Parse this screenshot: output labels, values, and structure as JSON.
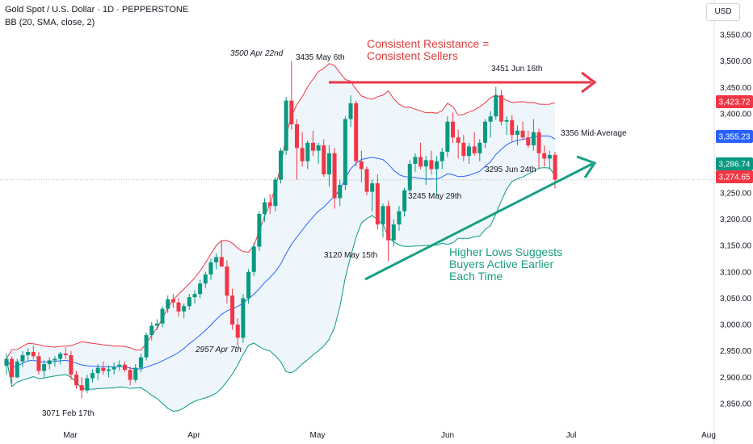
{
  "header": {
    "line1": "Gold Spot / U.S. Dollar · 1D · PEPPERSTONE",
    "line2": "BB (20, SMA, close, 2)"
  },
  "currency": "USD",
  "annotations": {
    "resistance": "Consistent Resistance =\nConsistent Sellers",
    "higher_lows": "Higher Lows Suggests\nBuyers Active Earlier\nEach Time",
    "mid_average": "3356 Mid-Average",
    "labels": [
      {
        "text": "3500 Apr 22nd",
        "price": 3500
      },
      {
        "text": "3435 May 6th",
        "price": 3435
      },
      {
        "text": "3451 Jun 16th",
        "price": 3451
      },
      {
        "text": "3295 Jun 24th",
        "price": 3295
      },
      {
        "text": "3245 May 29th",
        "price": 3245
      },
      {
        "text": "3120 May 15th",
        "price": 3120
      },
      {
        "text": "2957 Apr 7th",
        "price": 2957
      },
      {
        "text": "3071 Feb 17th",
        "price": 3071
      }
    ]
  },
  "price_badges": [
    {
      "value": "3,423.72",
      "color": "#f23645"
    },
    {
      "value": "3,355.23",
      "color": "#2962ff"
    },
    {
      "value": "3,286.74",
      "color": "#089981"
    },
    {
      "value": "3,274.65",
      "color": "#f23645"
    }
  ],
  "colors": {
    "up": "#089981",
    "down": "#f23645",
    "band_upper": "#f23645",
    "band_basis": "#2962ff",
    "band_lower": "#089981",
    "band_fill": "#eef6fb",
    "arrow_red": "#e8394a",
    "arrow_green": "#16a085"
  },
  "chart_data": {
    "type": "candlestick",
    "symbol": "Gold Spot / U.S. Dollar",
    "interval": "1D",
    "indicator": "BB (20, SMA, close, 2)",
    "x_ticks": [
      "Mar",
      "Apr",
      "May",
      "Jun",
      "Jul",
      "Aug"
    ],
    "y_ticks": [
      2850,
      2900,
      2950,
      3000,
      3050,
      3100,
      3150,
      3200,
      3250,
      3300,
      3350,
      3400,
      3450,
      3500,
      3550
    ],
    "y_tick_labels": [
      "2,850.00",
      "2,900.00",
      "2,950.00",
      "3,000.00",
      "3,050.00",
      "3,100.00",
      "3,150.00",
      "3,200.00",
      "3,250.00",
      "",
      "",
      "3,400.00",
      "3,450.00",
      "3,500.00",
      "3,550.00"
    ],
    "ylim": [
      2820,
      3590
    ],
    "last_price": 3274.65,
    "bollinger": {
      "upper": 3423.72,
      "basis": 3355.23,
      "lower": 3286.74
    },
    "candles": [
      [
        2922,
        2945,
        2905,
        2935
      ],
      [
        2935,
        2940,
        2888,
        2900
      ],
      [
        2900,
        2935,
        2898,
        2930
      ],
      [
        2930,
        2950,
        2920,
        2942
      ],
      [
        2942,
        2955,
        2930,
        2948
      ],
      [
        2948,
        2960,
        2935,
        2940
      ],
      [
        2940,
        2948,
        2905,
        2912
      ],
      [
        2912,
        2932,
        2900,
        2925
      ],
      [
        2925,
        2938,
        2915,
        2932
      ],
      [
        2932,
        2940,
        2920,
        2935
      ],
      [
        2935,
        2948,
        2925,
        2945
      ],
      [
        2945,
        2957,
        2935,
        2942
      ],
      [
        2942,
        2950,
        2895,
        2905
      ],
      [
        2905,
        2912,
        2878,
        2885
      ],
      [
        2885,
        2900,
        2860,
        2875
      ],
      [
        2875,
        2905,
        2870,
        2898
      ],
      [
        2898,
        2915,
        2890,
        2908
      ],
      [
        2908,
        2925,
        2895,
        2918
      ],
      [
        2918,
        2930,
        2905,
        2912
      ],
      [
        2912,
        2922,
        2900,
        2915
      ],
      [
        2915,
        2928,
        2905,
        2920
      ],
      [
        2920,
        2932,
        2912,
        2924
      ],
      [
        2924,
        2930,
        2910,
        2914
      ],
      [
        2914,
        2920,
        2885,
        2895
      ],
      [
        2895,
        2925,
        2890,
        2918
      ],
      [
        2918,
        2945,
        2910,
        2938
      ],
      [
        2938,
        2985,
        2932,
        2980
      ],
      [
        2980,
        3005,
        2970,
        2998
      ],
      [
        2998,
        3010,
        2990,
        3002
      ],
      [
        3002,
        3035,
        2995,
        3030
      ],
      [
        3030,
        3055,
        3022,
        3048
      ],
      [
        3048,
        3058,
        3032,
        3042
      ],
      [
        3042,
        3050,
        3015,
        3025
      ],
      [
        3025,
        3040,
        3012,
        3035
      ],
      [
        3035,
        3058,
        3028,
        3052
      ],
      [
        3052,
        3065,
        3040,
        3058
      ],
      [
        3058,
        3085,
        3050,
        3078
      ],
      [
        3078,
        3100,
        3070,
        3095
      ],
      [
        3095,
        3125,
        3085,
        3118
      ],
      [
        3118,
        3135,
        3105,
        3128
      ],
      [
        3128,
        3160,
        3115,
        3110
      ],
      [
        3110,
        3122,
        3040,
        3055
      ],
      [
        3055,
        3068,
        2990,
        3000
      ],
      [
        3000,
        3012,
        2960,
        2975
      ],
      [
        2975,
        3058,
        2965,
        3050
      ],
      [
        3050,
        3105,
        3040,
        3100
      ],
      [
        3100,
        3155,
        3092,
        3148
      ],
      [
        3148,
        3215,
        3140,
        3210
      ],
      [
        3210,
        3240,
        3195,
        3232
      ],
      [
        3232,
        3248,
        3210,
        3225
      ],
      [
        3225,
        3280,
        3215,
        3275
      ],
      [
        3275,
        3335,
        3268,
        3330
      ],
      [
        3330,
        3432,
        3322,
        3425
      ],
      [
        3425,
        3500,
        3370,
        3380
      ],
      [
        3380,
        3390,
        3275,
        3335
      ],
      [
        3335,
        3365,
        3300,
        3310
      ],
      [
        3310,
        3350,
        3295,
        3345
      ],
      [
        3345,
        3368,
        3320,
        3330
      ],
      [
        3330,
        3345,
        3305,
        3340
      ],
      [
        3340,
        3352,
        3280,
        3285
      ],
      [
        3285,
        3340,
        3262,
        3325
      ],
      [
        3325,
        3335,
        3220,
        3240
      ],
      [
        3240,
        3275,
        3225,
        3265
      ],
      [
        3265,
        3395,
        3255,
        3390
      ],
      [
        3390,
        3435,
        3375,
        3420
      ],
      [
        3420,
        3425,
        3300,
        3310
      ],
      [
        3310,
        3330,
        3270,
        3295
      ],
      [
        3295,
        3300,
        3245,
        3252
      ],
      [
        3252,
        3275,
        3215,
        3268
      ],
      [
        3268,
        3285,
        3180,
        3190
      ],
      [
        3190,
        3230,
        3165,
        3225
      ],
      [
        3225,
        3235,
        3120,
        3160
      ],
      [
        3160,
        3200,
        3148,
        3190
      ],
      [
        3190,
        3225,
        3178,
        3215
      ],
      [
        3215,
        3260,
        3205,
        3255
      ],
      [
        3255,
        3312,
        3248,
        3305
      ],
      [
        3305,
        3325,
        3290,
        3318
      ],
      [
        3318,
        3345,
        3295,
        3300
      ],
      [
        3300,
        3320,
        3265,
        3312
      ],
      [
        3312,
        3330,
        3285,
        3295
      ],
      [
        3295,
        3320,
        3245,
        3310
      ],
      [
        3310,
        3335,
        3295,
        3328
      ],
      [
        3328,
        3395,
        3318,
        3385
      ],
      [
        3385,
        3402,
        3345,
        3355
      ],
      [
        3355,
        3370,
        3315,
        3345
      ],
      [
        3345,
        3360,
        3310,
        3320
      ],
      [
        3320,
        3345,
        3305,
        3338
      ],
      [
        3338,
        3365,
        3320,
        3325
      ],
      [
        3325,
        3352,
        3310,
        3345
      ],
      [
        3345,
        3390,
        3335,
        3385
      ],
      [
        3385,
        3405,
        3355,
        3395
      ],
      [
        3395,
        3451,
        3388,
        3435
      ],
      [
        3435,
        3445,
        3378,
        3385
      ],
      [
        3385,
        3395,
        3360,
        3388
      ],
      [
        3388,
        3398,
        3348,
        3360
      ],
      [
        3360,
        3378,
        3340,
        3368
      ],
      [
        3368,
        3385,
        3350,
        3355
      ],
      [
        3355,
        3368,
        3335,
        3340
      ],
      [
        3340,
        3390,
        3330,
        3365
      ],
      [
        3365,
        3372,
        3295,
        3325
      ],
      [
        3325,
        3340,
        3300,
        3315
      ],
      [
        3315,
        3330,
        3295,
        3322
      ],
      [
        3322,
        3328,
        3258,
        3275
      ]
    ]
  }
}
